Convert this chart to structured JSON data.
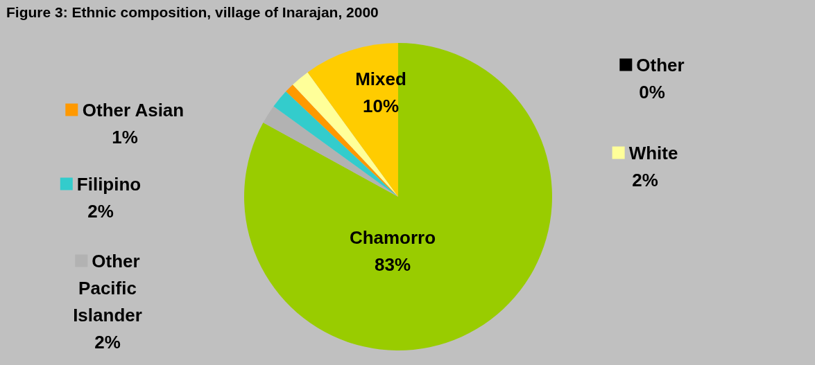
{
  "chart_data": {
    "type": "pie",
    "title": "Figure 3: Ethnic composition, village of Inarajan, 2000",
    "categories": [
      "Chamorro",
      "Other Pacific Islander",
      "Filipino",
      "Other Asian",
      "White",
      "Other",
      "Mixed"
    ],
    "values": [
      83,
      2,
      2,
      1,
      2,
      0,
      10
    ],
    "value_labels": [
      "83%",
      "2%",
      "2%",
      "1%",
      "2%",
      "0%",
      "10%"
    ],
    "colors": [
      "#99cc00",
      "#b2b2b2",
      "#33cccc",
      "#ff9900",
      "#ffff99",
      "#000000",
      "#ffcc00"
    ],
    "legend": "left"
  }
}
